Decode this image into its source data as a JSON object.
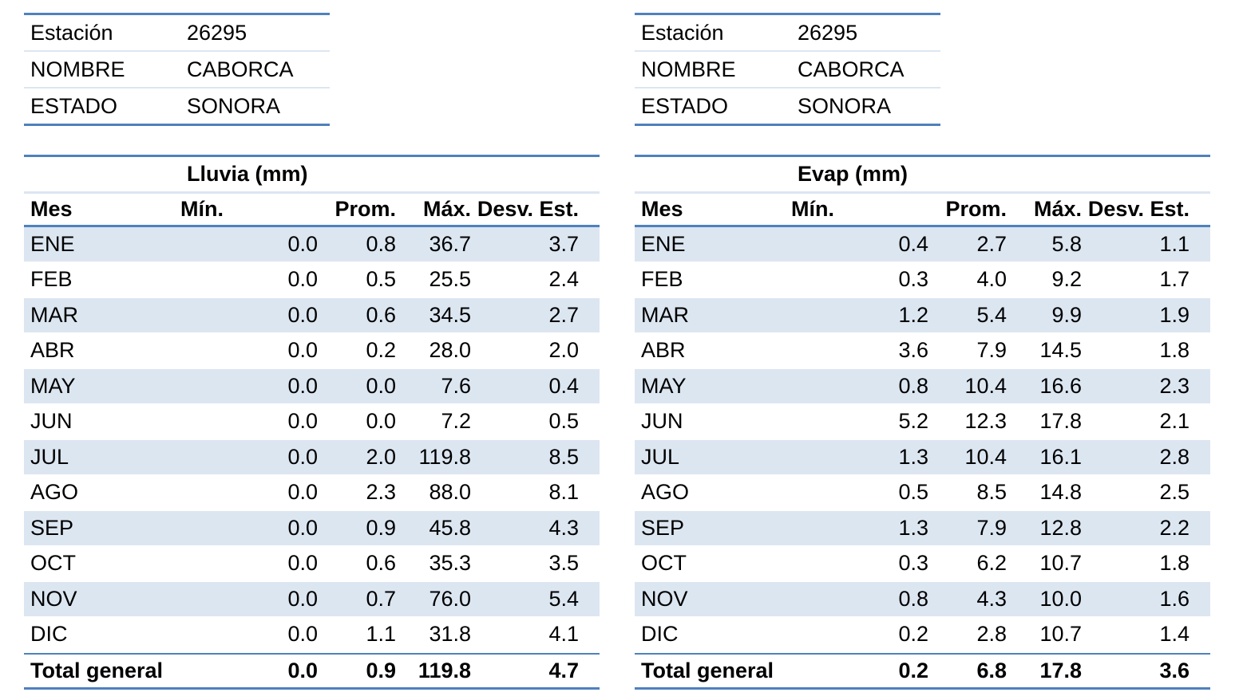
{
  "left": {
    "info": [
      {
        "key": "Estación",
        "value": "26295"
      },
      {
        "key": "NOMBRE",
        "value": "CABORCA"
      },
      {
        "key": "ESTADO",
        "value": "SONORA"
      }
    ],
    "title": "Lluvia (mm)",
    "headers": {
      "mes": "Mes",
      "min": "Mín.",
      "prom": "Prom.",
      "max": "Máx.",
      "desv": "Desv. Est."
    },
    "rows": [
      {
        "mes": "ENE",
        "min": "0.0",
        "prom": "0.8",
        "max": "36.7",
        "desv": "3.7"
      },
      {
        "mes": "FEB",
        "min": "0.0",
        "prom": "0.5",
        "max": "25.5",
        "desv": "2.4"
      },
      {
        "mes": "MAR",
        "min": "0.0",
        "prom": "0.6",
        "max": "34.5",
        "desv": "2.7"
      },
      {
        "mes": "ABR",
        "min": "0.0",
        "prom": "0.2",
        "max": "28.0",
        "desv": "2.0"
      },
      {
        "mes": "MAY",
        "min": "0.0",
        "prom": "0.0",
        "max": "7.6",
        "desv": "0.4"
      },
      {
        "mes": "JUN",
        "min": "0.0",
        "prom": "0.0",
        "max": "7.2",
        "desv": "0.5"
      },
      {
        "mes": "JUL",
        "min": "0.0",
        "prom": "2.0",
        "max": "119.8",
        "desv": "8.5"
      },
      {
        "mes": "AGO",
        "min": "0.0",
        "prom": "2.3",
        "max": "88.0",
        "desv": "8.1"
      },
      {
        "mes": "SEP",
        "min": "0.0",
        "prom": "0.9",
        "max": "45.8",
        "desv": "4.3"
      },
      {
        "mes": "OCT",
        "min": "0.0",
        "prom": "0.6",
        "max": "35.3",
        "desv": "3.5"
      },
      {
        "mes": "NOV",
        "min": "0.0",
        "prom": "0.7",
        "max": "76.0",
        "desv": "5.4"
      },
      {
        "mes": "DIC",
        "min": "0.0",
        "prom": "1.1",
        "max": "31.8",
        "desv": "4.1"
      }
    ],
    "total": {
      "mes": "Total general",
      "min": "0.0",
      "prom": "0.9",
      "max": "119.8",
      "desv": "4.7"
    }
  },
  "right": {
    "info": [
      {
        "key": "Estación",
        "value": "26295"
      },
      {
        "key": "NOMBRE",
        "value": "CABORCA"
      },
      {
        "key": "ESTADO",
        "value": "SONORA"
      }
    ],
    "title": "Evap  (mm)",
    "headers": {
      "mes": "Mes",
      "min": "Mín.",
      "prom": "Prom.",
      "max": "Máx.",
      "desv": "Desv. Est."
    },
    "rows": [
      {
        "mes": "ENE",
        "min": "0.4",
        "prom": "2.7",
        "max": "5.8",
        "desv": "1.1"
      },
      {
        "mes": "FEB",
        "min": "0.3",
        "prom": "4.0",
        "max": "9.2",
        "desv": "1.7"
      },
      {
        "mes": "MAR",
        "min": "1.2",
        "prom": "5.4",
        "max": "9.9",
        "desv": "1.9"
      },
      {
        "mes": "ABR",
        "min": "3.6",
        "prom": "7.9",
        "max": "14.5",
        "desv": "1.8"
      },
      {
        "mes": "MAY",
        "min": "0.8",
        "prom": "10.4",
        "max": "16.6",
        "desv": "2.3"
      },
      {
        "mes": "JUN",
        "min": "5.2",
        "prom": "12.3",
        "max": "17.8",
        "desv": "2.1"
      },
      {
        "mes": "JUL",
        "min": "1.3",
        "prom": "10.4",
        "max": "16.1",
        "desv": "2.8"
      },
      {
        "mes": "AGO",
        "min": "0.5",
        "prom": "8.5",
        "max": "14.8",
        "desv": "2.5"
      },
      {
        "mes": "SEP",
        "min": "1.3",
        "prom": "7.9",
        "max": "12.8",
        "desv": "2.2"
      },
      {
        "mes": "OCT",
        "min": "0.3",
        "prom": "6.2",
        "max": "10.7",
        "desv": "1.8"
      },
      {
        "mes": "NOV",
        "min": "0.8",
        "prom": "4.3",
        "max": "10.0",
        "desv": "1.6"
      },
      {
        "mes": "DIC",
        "min": "0.2",
        "prom": "2.8",
        "max": "10.7",
        "desv": "1.4"
      }
    ],
    "total": {
      "mes": "Total general",
      "min": "0.2",
      "prom": "6.8",
      "max": "17.8",
      "desv": "3.6"
    }
  },
  "colors": {
    "accent_line": "#4f81bd",
    "band": "#dce6f1"
  }
}
